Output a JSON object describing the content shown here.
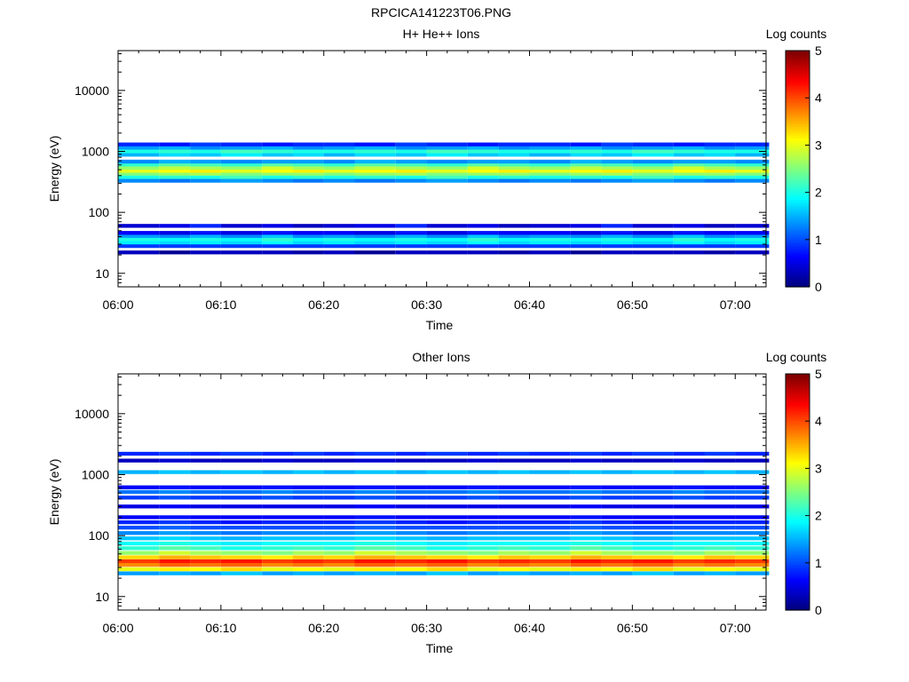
{
  "figure": {
    "title": "RPCICA141223T06.PNG"
  },
  "colorbar": {
    "label": "Log counts",
    "range": [
      0,
      5
    ],
    "ticks": [
      "0",
      "1",
      "2",
      "3",
      "4",
      "5"
    ]
  },
  "chart_data": [
    {
      "type": "heatmap",
      "title": "H+ He++ Ions",
      "xlabel": "Time",
      "ylabel": "Energy (eV)",
      "x_ticks": [
        "06:00",
        "06:10",
        "06:20",
        "06:30",
        "06:40",
        "06:50",
        "07:00"
      ],
      "y_ticks": [
        "10",
        "100",
        "1000",
        "10000"
      ],
      "y_scale": "log",
      "ylim": [
        6,
        45000
      ],
      "xlim": [
        "06:00",
        "07:03"
      ],
      "color_scale": [
        0,
        5
      ],
      "time_bins": [
        "06:00",
        "06:04",
        "06:07",
        "06:10",
        "06:14",
        "06:17",
        "06:20",
        "06:23",
        "06:27",
        "06:30",
        "06:34",
        "06:37",
        "06:40",
        "06:44",
        "06:47",
        "06:50",
        "06:54",
        "06:57",
        "07:00"
      ],
      "bands": [
        {
          "e": 22,
          "v": [
            0.3,
            0.1,
            0.3,
            0.3,
            0.3,
            0.2
          ]
        },
        {
          "e": 28,
          "v": [
            0.9,
            0.9,
            0.9,
            0.9,
            0.9,
            0.9
          ]
        },
        {
          "e": 32,
          "v": [
            1.8,
            1.7,
            1.8,
            1.7,
            1.9,
            1.7
          ]
        },
        {
          "e": 36,
          "v": [
            2.0,
            1.9,
            2.0,
            1.9,
            2.1,
            1.9
          ]
        },
        {
          "e": 41,
          "v": [
            1.4,
            1.3,
            1.5,
            1.3,
            1.6,
            1.3
          ]
        },
        {
          "e": 46,
          "v": [
            0.6,
            0.5,
            0.7,
            0.5,
            0.7,
            0.6
          ]
        },
        {
          "e": 60,
          "v": [
            0.4,
            0.5,
            0.8,
            0.4,
            0.5,
            0.3
          ]
        },
        {
          "e": 330,
          "v": [
            1.3,
            1.2,
            1.3,
            1.4,
            1.3,
            1.2
          ]
        },
        {
          "e": 380,
          "v": [
            2.0,
            2.1,
            2.0,
            2.2,
            2.0,
            2.1
          ]
        },
        {
          "e": 430,
          "v": [
            2.5,
            2.6,
            2.7,
            2.5,
            2.6,
            2.6
          ]
        },
        {
          "e": 480,
          "v": [
            3.0,
            3.1,
            3.2,
            3.0,
            3.1,
            3.2
          ]
        },
        {
          "e": 540,
          "v": [
            2.6,
            2.8,
            2.7,
            2.6,
            2.9,
            2.7
          ]
        },
        {
          "e": 610,
          "v": [
            2.1,
            2.3,
            2.2,
            2.1,
            2.3,
            2.2
          ]
        },
        {
          "e": 680,
          "v": [
            1.3,
            1.5,
            1.4,
            1.3,
            1.4,
            1.4
          ]
        },
        {
          "e": 880,
          "v": [
            1.5,
            1.7,
            1.6,
            1.8,
            1.6,
            1.7
          ]
        },
        {
          "e": 1000,
          "v": [
            2.0,
            2.1,
            2.0,
            2.2,
            2.1,
            2.0
          ]
        },
        {
          "e": 1150,
          "v": [
            1.4,
            1.5,
            1.3,
            1.4,
            1.5,
            1.3
          ]
        },
        {
          "e": 1300,
          "v": [
            0.8,
            0.7,
            0.9,
            0.8,
            0.7,
            0.8
          ]
        }
      ]
    },
    {
      "type": "heatmap",
      "title": "Other Ions",
      "xlabel": "Time",
      "ylabel": "Energy (eV)",
      "x_ticks": [
        "06:00",
        "06:10",
        "06:20",
        "06:30",
        "06:40",
        "06:50",
        "07:00"
      ],
      "y_ticks": [
        "10",
        "100",
        "1000",
        "10000"
      ],
      "y_scale": "log",
      "ylim": [
        6,
        45000
      ],
      "xlim": [
        "06:00",
        "07:03"
      ],
      "color_scale": [
        0,
        5
      ],
      "time_bins": [
        "06:00",
        "06:04",
        "06:07",
        "06:10",
        "06:14",
        "06:17",
        "06:20",
        "06:23",
        "06:27",
        "06:30",
        "06:34",
        "06:37",
        "06:40",
        "06:44",
        "06:47",
        "06:50",
        "06:54",
        "06:57",
        "07:00"
      ],
      "bands": [
        {
          "e": 24,
          "v": [
            1.4,
            1.5,
            1.4,
            1.6,
            1.4,
            1.5
          ]
        },
        {
          "e": 28,
          "v": [
            3.0,
            3.2,
            3.1,
            3.3,
            3.0,
            3.1
          ]
        },
        {
          "e": 33,
          "v": [
            3.7,
            3.9,
            3.8,
            3.9,
            3.7,
            3.8
          ]
        },
        {
          "e": 38,
          "v": [
            4.1,
            4.3,
            4.2,
            4.3,
            4.1,
            4.2
          ]
        },
        {
          "e": 44,
          "v": [
            3.3,
            3.5,
            3.4,
            3.3,
            3.2,
            3.4
          ]
        },
        {
          "e": 52,
          "v": [
            2.6,
            2.9,
            2.7,
            2.6,
            2.5,
            2.7
          ]
        },
        {
          "e": 62,
          "v": [
            2.1,
            2.3,
            2.2,
            2.0,
            2.1,
            2.2
          ]
        },
        {
          "e": 74,
          "v": [
            1.9,
            2.0,
            1.9,
            1.8,
            1.9,
            1.9
          ]
        },
        {
          "e": 90,
          "v": [
            1.6,
            1.7,
            1.6,
            1.5,
            1.6,
            1.6
          ]
        },
        {
          "e": 110,
          "v": [
            1.3,
            1.4,
            1.3,
            1.2,
            1.3,
            1.3
          ]
        },
        {
          "e": 135,
          "v": [
            1.0,
            1.1,
            1.0,
            1.0,
            1.0,
            1.0
          ]
        },
        {
          "e": 165,
          "v": [
            0.8,
            0.9,
            0.8,
            0.7,
            0.8,
            0.8
          ]
        },
        {
          "e": 200,
          "v": [
            0.6,
            0.7,
            0.6,
            0.6,
            0.6,
            0.6
          ]
        },
        {
          "e": 300,
          "v": [
            0.5,
            0.6,
            0.5,
            0.5,
            0.5,
            0.5
          ]
        },
        {
          "e": 420,
          "v": [
            0.9,
            1.0,
            0.9,
            0.9,
            1.0,
            0.9
          ]
        },
        {
          "e": 520,
          "v": [
            1.2,
            1.3,
            1.2,
            1.2,
            1.3,
            1.2
          ]
        },
        {
          "e": 620,
          "v": [
            0.6,
            0.7,
            0.6,
            0.6,
            0.7,
            0.6
          ]
        },
        {
          "e": 1100,
          "v": [
            1.5,
            1.6,
            1.5,
            1.6,
            1.5,
            1.6
          ]
        },
        {
          "e": 1700,
          "v": [
            0.3,
            0.4,
            0.3,
            0.3,
            0.4,
            0.3
          ]
        },
        {
          "e": 2200,
          "v": [
            0.8,
            0.9,
            0.8,
            0.9,
            0.8,
            0.9
          ]
        }
      ]
    }
  ]
}
